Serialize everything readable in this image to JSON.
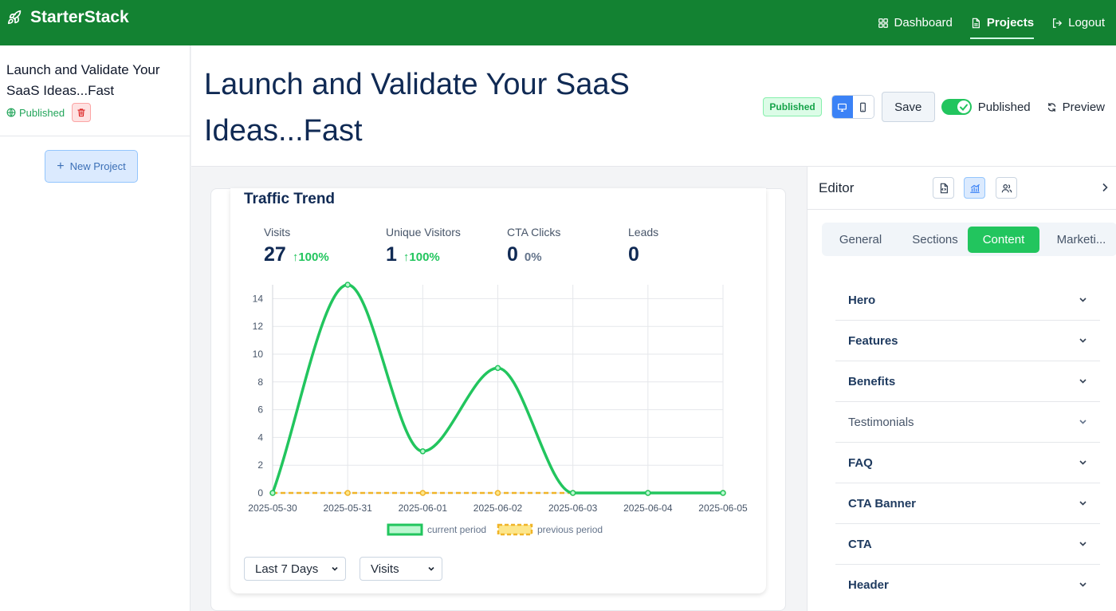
{
  "app": {
    "brand": "StarterStack",
    "nav": [
      {
        "label": "Dashboard",
        "icon": "dashboard-icon"
      },
      {
        "label": "Projects",
        "icon": "file-icon",
        "active": true
      },
      {
        "label": "Logout",
        "icon": "logout-icon"
      }
    ]
  },
  "sidebar": {
    "project": {
      "title": "Launch and Validate Your SaaS Ideas...Fast",
      "status": "Published"
    },
    "new_project_label": "New Project"
  },
  "header": {
    "title": "Launch and Validate Your SaaS Ideas...Fast",
    "status_badge": "Published",
    "save_label": "Save",
    "toggle_label": "Published",
    "toggle_on": true,
    "preview_label": "Preview"
  },
  "traffic": {
    "title": "Traffic Trend",
    "metrics": [
      {
        "label": "Visits",
        "value": "27",
        "change": "100%",
        "trend": "up"
      },
      {
        "label": "Unique Visitors",
        "value": "1",
        "change": "100%",
        "trend": "up"
      },
      {
        "label": "CTA Clicks",
        "value": "0",
        "change": "0%",
        "trend": "flat"
      },
      {
        "label": "Leads",
        "value": "0",
        "change": "",
        "trend": "none"
      }
    ],
    "range_select": "Last 7 Days",
    "metric_select": "Visits"
  },
  "chart_data": {
    "type": "line",
    "x": [
      "2025-05-30",
      "2025-05-31",
      "2025-06-01",
      "2025-06-02",
      "2025-06-03",
      "2025-06-04",
      "2025-06-05"
    ],
    "series": [
      {
        "name": "current period",
        "values": [
          0,
          15,
          3,
          9,
          0,
          0,
          0
        ],
        "color": "#22c55e",
        "style": "solid"
      },
      {
        "name": "previous period",
        "values": [
          0,
          0,
          0,
          0,
          0,
          0,
          0
        ],
        "color": "#f0b429",
        "style": "dashed"
      }
    ],
    "yticks": [
      0,
      2,
      4,
      6,
      8,
      10,
      12,
      14
    ],
    "ylim": [
      0,
      15
    ],
    "grid": true,
    "legend": "bottom"
  },
  "editor": {
    "title": "Editor",
    "tabs": [
      {
        "label": "General"
      },
      {
        "label": "Sections"
      },
      {
        "label": "Content",
        "active": true
      },
      {
        "label": "Marketi..."
      }
    ],
    "sections": [
      {
        "label": "Hero"
      },
      {
        "label": "Features"
      },
      {
        "label": "Benefits"
      },
      {
        "label": "Testimonials",
        "muted": true
      },
      {
        "label": "FAQ"
      },
      {
        "label": "CTA Banner"
      },
      {
        "label": "CTA"
      },
      {
        "label": "Header"
      }
    ]
  },
  "colors": {
    "topbar": "#138232",
    "accent": "#22c55e",
    "primary_text": "#102a54",
    "previous_period": "#f0b429"
  }
}
